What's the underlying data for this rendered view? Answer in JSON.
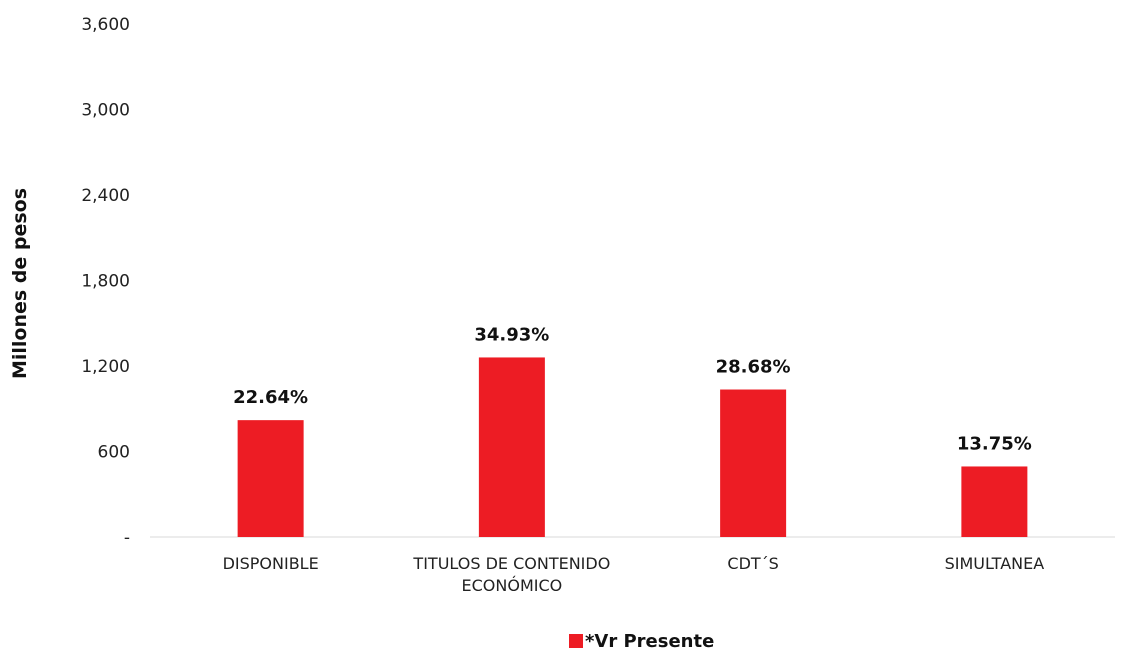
{
  "chart_data": {
    "type": "bar",
    "ylabel": "Millones de pesos",
    "ylim": [
      0,
      3600
    ],
    "yticks": [
      0,
      600,
      1200,
      1800,
      2400,
      3000,
      3600
    ],
    "ytick_labels": [
      "-",
      "600",
      "1,200",
      "1,800",
      "2,400",
      "3,000",
      "3,600"
    ],
    "categories": [
      [
        "DISPONIBLE"
      ],
      [
        "TITULOS DE CONTENIDO",
        "ECONÓMICO"
      ],
      [
        "CDT´S"
      ],
      [
        "SIMULTANEA"
      ]
    ],
    "series": [
      {
        "name": "*Vr Presente",
        "color": "#ed1c24",
        "values": [
          820,
          1260,
          1035,
          495
        ],
        "data_labels": [
          "22.64%",
          "34.93%",
          "28.68%",
          "13.75%"
        ]
      }
    ],
    "legend": "bottom-center",
    "grid": false
  }
}
